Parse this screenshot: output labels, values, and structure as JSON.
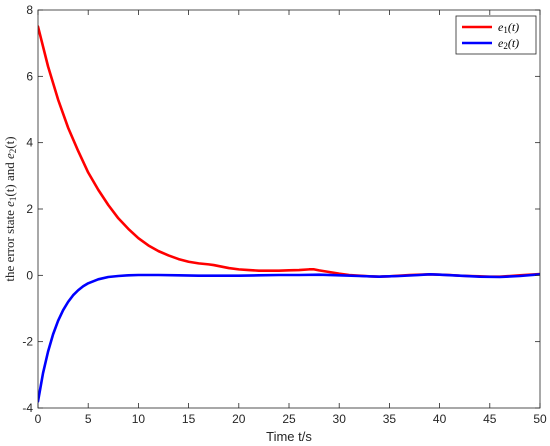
{
  "chart_data": {
    "type": "line",
    "xlabel": "Time t/s",
    "ylabel_parts": [
      "the error state ",
      "e",
      "1",
      "(t)",
      " and ",
      "e",
      "2",
      "(t)"
    ],
    "xlim": [
      0,
      50
    ],
    "ylim": [
      -4,
      8
    ],
    "xticks": [
      0,
      5,
      10,
      15,
      20,
      25,
      30,
      35,
      40,
      45,
      50
    ],
    "yticks": [
      -4,
      -2,
      0,
      2,
      4,
      6,
      8
    ],
    "grid": false,
    "legend_position": "top-right",
    "series": [
      {
        "name": "e1(t)",
        "legend_parts": [
          "e",
          "1",
          "(t)"
        ],
        "color": "#ff0000",
        "x": [
          0,
          1,
          2,
          3,
          4,
          5,
          6,
          7,
          8,
          9,
          10,
          11,
          12,
          13,
          14,
          15,
          16,
          17,
          17.5,
          18,
          19,
          20,
          21,
          22,
          23,
          24,
          25,
          26,
          27,
          27.5,
          28,
          29,
          30,
          31,
          32,
          33,
          34,
          35,
          36,
          37,
          38,
          39,
          40,
          41,
          42,
          43,
          44,
          45,
          46,
          47,
          48,
          49,
          50
        ],
        "y": [
          7.5,
          6.3,
          5.3,
          4.45,
          3.75,
          3.1,
          2.58,
          2.12,
          1.72,
          1.4,
          1.12,
          0.9,
          0.73,
          0.6,
          0.49,
          0.41,
          0.36,
          0.33,
          0.31,
          0.28,
          0.22,
          0.18,
          0.16,
          0.14,
          0.14,
          0.14,
          0.15,
          0.16,
          0.18,
          0.18,
          0.15,
          0.1,
          0.05,
          0.01,
          -0.01,
          -0.03,
          -0.04,
          -0.03,
          -0.01,
          0.01,
          0.02,
          0.03,
          0.02,
          0.01,
          -0.01,
          -0.02,
          -0.03,
          -0.04,
          -0.04,
          -0.02,
          0.0,
          0.02,
          0.04
        ]
      },
      {
        "name": "e2(t)",
        "legend_parts": [
          "e",
          "2",
          "(t)"
        ],
        "color": "#0000ff",
        "x": [
          0,
          0.5,
          1,
          1.5,
          2,
          2.5,
          3,
          3.5,
          4,
          4.5,
          5,
          6,
          7,
          8,
          9,
          10,
          12,
          14,
          16,
          18,
          20,
          22,
          24,
          26,
          28,
          30,
          32,
          34,
          36,
          38,
          39,
          40,
          42,
          44,
          46,
          48,
          50
        ],
        "y": [
          -3.8,
          -2.95,
          -2.3,
          -1.78,
          -1.37,
          -1.05,
          -0.8,
          -0.6,
          -0.45,
          -0.33,
          -0.24,
          -0.12,
          -0.05,
          -0.02,
          0.0,
          0.01,
          0.01,
          0.0,
          -0.01,
          -0.01,
          -0.01,
          0.0,
          0.01,
          0.01,
          0.02,
          0.0,
          -0.02,
          -0.04,
          -0.02,
          0.01,
          0.03,
          0.02,
          -0.01,
          -0.04,
          -0.05,
          -0.02,
          0.03
        ]
      }
    ]
  }
}
